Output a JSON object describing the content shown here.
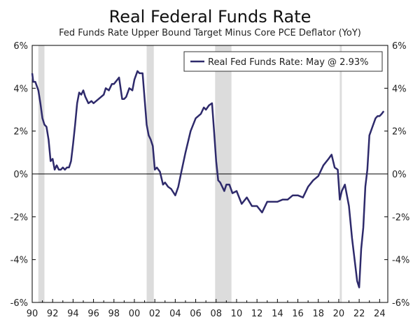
{
  "chart_data": {
    "type": "line",
    "title": "Real Federal Funds Rate",
    "subtitle": "Fed Funds Rate Upper Bound Target Minus Core PCE Deflator (YoY)",
    "xlabel": "",
    "ylabel": "",
    "xlim": [
      1990,
      2024.8
    ],
    "ylim": [
      -6,
      6
    ],
    "y_ticks": [
      "6%",
      "4%",
      "2%",
      "0%",
      "-2%",
      "-4%",
      "-6%"
    ],
    "y_tick_values": [
      6,
      4,
      2,
      0,
      -2,
      -4,
      -6
    ],
    "x_tick_values": [
      1990,
      1992,
      1994,
      1996,
      1998,
      2000,
      2002,
      2004,
      2006,
      2008,
      2010,
      2012,
      2014,
      2016,
      2018,
      2020,
      2022,
      2024
    ],
    "x_tick_labels": [
      "90",
      "92",
      "94",
      "96",
      "98",
      "00",
      "02",
      "04",
      "06",
      "08",
      "10",
      "12",
      "14",
      "16",
      "18",
      "20",
      "22",
      "24"
    ],
    "grid": false,
    "legend_position": "top-right",
    "colors": {
      "series": "#2e2a6b",
      "recession": "#dcdcdc",
      "axis": "#000000"
    },
    "recessions": [
      [
        1990.6,
        1991.2
      ],
      [
        2001.2,
        2001.9
      ],
      [
        2007.9,
        2009.5
      ],
      [
        2020.1,
        2020.3
      ]
    ],
    "series": [
      {
        "name": "Real Fed Funds Rate: May @ 2.93%",
        "x": [
          1990.0,
          1990.1,
          1990.3,
          1990.6,
          1990.8,
          1991.0,
          1991.2,
          1991.4,
          1991.6,
          1991.8,
          1992.0,
          1992.2,
          1992.4,
          1992.6,
          1992.8,
          1993.0,
          1993.2,
          1993.4,
          1993.6,
          1993.8,
          1994.0,
          1994.2,
          1994.4,
          1994.6,
          1994.8,
          1995.0,
          1995.2,
          1995.5,
          1995.8,
          1996.0,
          1996.5,
          1997.0,
          1997.2,
          1997.5,
          1997.8,
          1998.0,
          1998.5,
          1998.8,
          1999.0,
          1999.2,
          1999.5,
          1999.8,
          2000.0,
          2000.3,
          2000.5,
          2000.8,
          2001.0,
          2001.2,
          2001.4,
          2001.6,
          2001.8,
          2002.0,
          2002.2,
          2002.5,
          2002.8,
          2003.0,
          2003.3,
          2003.6,
          2004.0,
          2004.3,
          2004.6,
          2005.0,
          2005.5,
          2006.0,
          2006.5,
          2006.8,
          2007.0,
          2007.3,
          2007.6,
          2007.8,
          2008.0,
          2008.2,
          2008.4,
          2008.6,
          2008.8,
          2009.0,
          2009.3,
          2009.6,
          2010.0,
          2010.5,
          2011.0,
          2011.5,
          2012.0,
          2012.5,
          2013.0,
          2013.5,
          2014.0,
          2014.5,
          2015.0,
          2015.5,
          2016.0,
          2016.5,
          2017.0,
          2017.5,
          2018.0,
          2018.5,
          2019.0,
          2019.3,
          2019.6,
          2019.9,
          2020.1,
          2020.3,
          2020.6,
          2021.0,
          2021.3,
          2021.6,
          2021.8,
          2022.0,
          2022.2,
          2022.4,
          2022.6,
          2022.8,
          2023.0,
          2023.3,
          2023.6,
          2023.8,
          2024.0,
          2024.2,
          2024.4
        ],
        "values": [
          4.7,
          4.3,
          4.3,
          3.9,
          3.3,
          2.6,
          2.3,
          2.2,
          1.6,
          0.6,
          0.7,
          0.2,
          0.4,
          0.2,
          0.2,
          0.3,
          0.2,
          0.3,
          0.3,
          0.6,
          1.4,
          2.3,
          3.3,
          3.8,
          3.7,
          3.9,
          3.6,
          3.3,
          3.4,
          3.3,
          3.5,
          3.7,
          4.0,
          3.9,
          4.2,
          4.2,
          4.5,
          3.5,
          3.5,
          3.6,
          4.0,
          3.9,
          4.4,
          4.8,
          4.7,
          4.7,
          3.5,
          2.3,
          1.8,
          1.6,
          1.3,
          0.2,
          0.3,
          0.1,
          -0.5,
          -0.4,
          -0.6,
          -0.7,
          -1.0,
          -0.6,
          0.1,
          1.0,
          2.0,
          2.6,
          2.8,
          3.1,
          3.0,
          3.2,
          3.3,
          2.0,
          0.6,
          -0.3,
          -0.4,
          -0.6,
          -0.8,
          -0.5,
          -0.5,
          -0.9,
          -0.8,
          -1.4,
          -1.1,
          -1.5,
          -1.5,
          -1.8,
          -1.3,
          -1.3,
          -1.3,
          -1.2,
          -1.2,
          -1.0,
          -1.0,
          -1.1,
          -0.6,
          -0.3,
          -0.1,
          0.4,
          0.7,
          0.9,
          0.3,
          0.2,
          -1.2,
          -0.8,
          -0.5,
          -1.5,
          -3.0,
          -4.2,
          -5.0,
          -5.3,
          -3.5,
          -2.5,
          -0.6,
          0.2,
          1.8,
          2.2,
          2.6,
          2.7,
          2.7,
          2.8,
          2.93
        ]
      }
    ]
  }
}
